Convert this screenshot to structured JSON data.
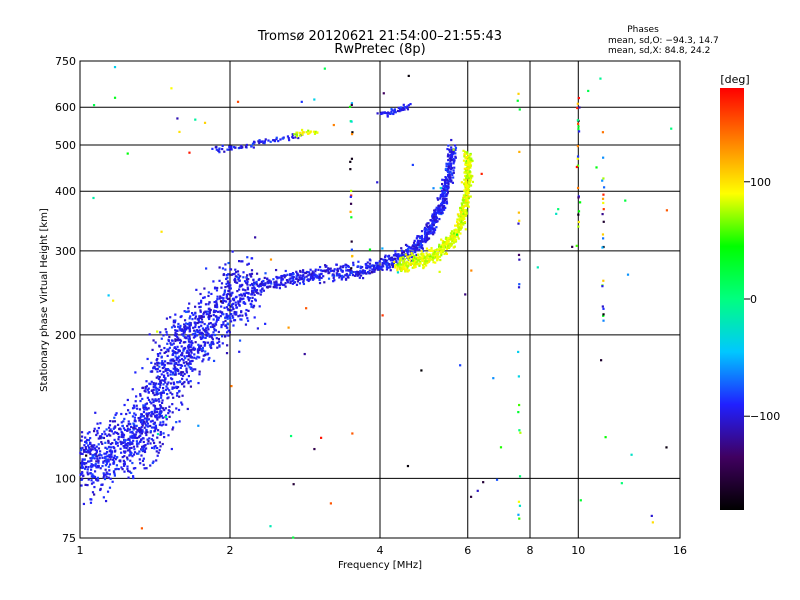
{
  "chart_data": {
    "type": "scatter",
    "title": "Tromsø 20120621 21:54:00–21:55:43",
    "subtitle": "RwPretec (8p)",
    "xlabel": "Frequency [MHz]",
    "ylabel": "Stationary phase Virtual Height [km]",
    "x_scale": "log",
    "y_scale": "log",
    "xlim": [
      1,
      16
    ],
    "ylim": [
      75,
      750
    ],
    "x_ticks": [
      "1",
      "2",
      "4",
      "6",
      "8",
      "10",
      "16"
    ],
    "x_tick_values": [
      1,
      2,
      4,
      6,
      8,
      10,
      16
    ],
    "y_ticks": [
      "75",
      "100",
      "200",
      "300",
      "400",
      "500",
      "600",
      "750"
    ],
    "y_tick_values": [
      75,
      100,
      200,
      300,
      400,
      500,
      600,
      750
    ],
    "grid": true,
    "legend_title": "Phases",
    "legend_lines": [
      "mean, sd,O: −94.3, 14.7",
      "mean, sd,X:  84.8, 24.2"
    ],
    "colorbar": {
      "label": "[deg]",
      "range": [
        -180,
        180
      ],
      "ticks": [
        "100",
        "0",
        "−100"
      ],
      "tick_values": [
        100,
        0,
        -100
      ],
      "colors": [
        "#000000",
        "#400060",
        "#2020ff",
        "#00c8ff",
        "#00ff80",
        "#00ff00",
        "#ffff00",
        "#ff8000",
        "#ff0000"
      ]
    },
    "series": [
      {
        "name": "O",
        "color_value": -94,
        "trace": [
          {
            "x": 1.02,
            "y": 105
          },
          {
            "x": 1.1,
            "y": 110
          },
          {
            "x": 1.25,
            "y": 118
          },
          {
            "x": 1.35,
            "y": 128
          },
          {
            "x": 1.45,
            "y": 150
          },
          {
            "x": 1.55,
            "y": 175
          },
          {
            "x": 1.65,
            "y": 195
          },
          {
            "x": 1.8,
            "y": 210
          },
          {
            "x": 2.0,
            "y": 240
          },
          {
            "x": 2.2,
            "y": 250
          },
          {
            "x": 2.6,
            "y": 262
          },
          {
            "x": 3.0,
            "y": 268
          },
          {
            "x": 3.5,
            "y": 272
          },
          {
            "x": 4.0,
            "y": 278
          },
          {
            "x": 4.4,
            "y": 290
          },
          {
            "x": 4.8,
            "y": 310
          },
          {
            "x": 5.1,
            "y": 340
          },
          {
            "x": 5.35,
            "y": 380
          },
          {
            "x": 5.5,
            "y": 430
          },
          {
            "x": 5.6,
            "y": 500
          }
        ],
        "upper_trace": [
          {
            "x": 1.85,
            "y": 490
          },
          {
            "x": 2.1,
            "y": 495
          },
          {
            "x": 2.4,
            "y": 510
          },
          {
            "x": 2.8,
            "y": 525
          }
        ],
        "top_trace": [
          {
            "x": 4.0,
            "y": 580
          },
          {
            "x": 4.3,
            "y": 590
          },
          {
            "x": 4.6,
            "y": 605
          }
        ]
      },
      {
        "name": "X",
        "color_value": 85,
        "trace": [
          {
            "x": 4.3,
            "y": 280
          },
          {
            "x": 4.7,
            "y": 285
          },
          {
            "x": 5.1,
            "y": 292
          },
          {
            "x": 5.5,
            "y": 310
          },
          {
            "x": 5.8,
            "y": 340
          },
          {
            "x": 5.95,
            "y": 380
          },
          {
            "x": 6.0,
            "y": 430
          },
          {
            "x": 6.0,
            "y": 480
          }
        ],
        "upper_trace": [
          {
            "x": 2.7,
            "y": 528
          },
          {
            "x": 3.0,
            "y": 535
          }
        ]
      }
    ],
    "vertical_streaks": [
      {
        "x": 10.0,
        "y_from": 330,
        "y_to": 640
      },
      {
        "x": 11.2,
        "y_from": 210,
        "y_to": 590
      },
      {
        "x": 7.6,
        "y_from": 80,
        "y_to": 700
      },
      {
        "x": 3.5,
        "y_from": 250,
        "y_to": 700
      }
    ]
  }
}
